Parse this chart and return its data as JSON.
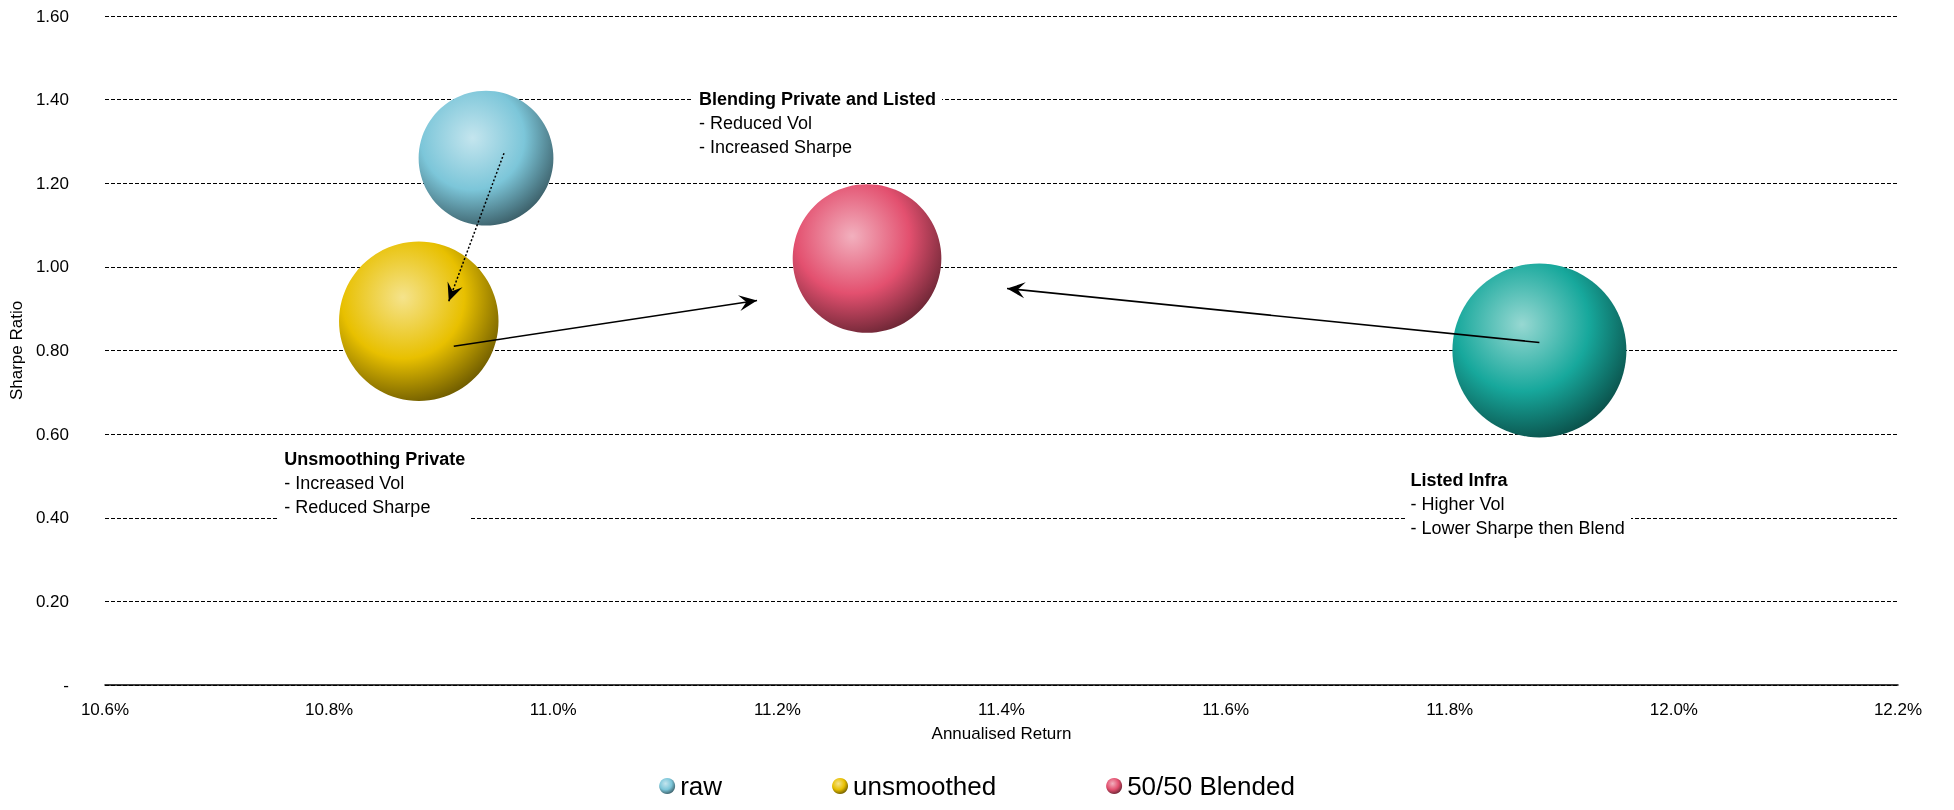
{
  "chart_data": {
    "type": "bubble",
    "xlabel": "Annualised Return",
    "ylabel": "Sharpe Ratio",
    "xlim": [
      10.6,
      12.2
    ],
    "xticks": [
      {
        "value": 10.6,
        "label": "10.6%"
      },
      {
        "value": 10.8,
        "label": "10.8%"
      },
      {
        "value": 11.0,
        "label": "11.0%"
      },
      {
        "value": 11.2,
        "label": "11.2%"
      },
      {
        "value": 11.4,
        "label": "11.4%"
      },
      {
        "value": 11.6,
        "label": "11.6%"
      },
      {
        "value": 11.8,
        "label": "11.8%"
      },
      {
        "value": 12.0,
        "label": "12.0%"
      },
      {
        "value": 12.2,
        "label": "12.2%"
      }
    ],
    "ylim": [
      0,
      1.6
    ],
    "yticks": [
      {
        "value": 0,
        "label": "-"
      },
      {
        "value": 0.2,
        "label": "0.20"
      },
      {
        "value": 0.4,
        "label": "0.40"
      },
      {
        "value": 0.6,
        "label": "0.60"
      },
      {
        "value": 0.8,
        "label": "0.80"
      },
      {
        "value": 1.0,
        "label": "1.00"
      },
      {
        "value": 1.2,
        "label": "1.20"
      },
      {
        "value": 1.4,
        "label": "1.40"
      },
      {
        "value": 1.6,
        "label": "1.60"
      }
    ],
    "grid": "y",
    "legend": "bottom",
    "series": [
      {
        "color": "#17a89c",
        "x": [
          11.88
        ],
        "values": [
          0.8
        ],
        "sizes": [
          1
        ]
      },
      {
        "name": "raw",
        "color": "#7cc6d9",
        "x": [
          10.94
        ],
        "values": [
          1.26
        ],
        "sizes": [
          0.6
        ]
      },
      {
        "name": "unsmoothed",
        "color": "#e8c000",
        "x": [
          10.88
        ],
        "values": [
          0.87
        ],
        "sizes": [
          0.84
        ]
      },
      {
        "name": "50/50 Blended",
        "color": "#e3506f",
        "x": [
          11.28
        ],
        "values": [
          1.02
        ],
        "sizes": [
          0.73
        ]
      }
    ],
    "annotations": [
      "Blending Private and Listed\n- Reduced Vol\n- Increased Sharpe",
      "Unsmoothing Private\n- Increased Vol\n- Reduced Sharpe",
      "Listed Infra\n- Higher Vol\n- Lower Sharpe then Blend"
    ]
  }
}
